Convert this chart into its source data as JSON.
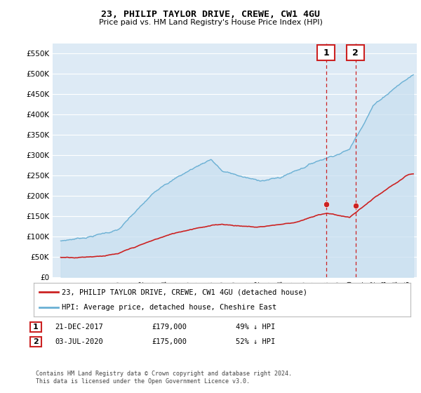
{
  "title": "23, PHILIP TAYLOR DRIVE, CREWE, CW1 4GU",
  "subtitle": "Price paid vs. HM Land Registry's House Price Index (HPI)",
  "hpi_color": "#6ab0d4",
  "hpi_fill_color": "#c8dff0",
  "price_color": "#cc2222",
  "background_color": "#ffffff",
  "plot_bg_color": "#ddeaf5",
  "grid_color": "#ffffff",
  "ylim": [
    0,
    575000
  ],
  "yticks": [
    0,
    50000,
    100000,
    150000,
    200000,
    250000,
    300000,
    350000,
    400000,
    450000,
    500000,
    550000
  ],
  "transaction1": {
    "date": "21-DEC-2017",
    "price": 179000,
    "pct": "49%",
    "direction": "↓"
  },
  "transaction2": {
    "date": "03-JUL-2020",
    "price": 175000,
    "pct": "52%",
    "direction": "↓"
  },
  "legend_label1": "23, PHILIP TAYLOR DRIVE, CREWE, CW1 4GU (detached house)",
  "legend_label2": "HPI: Average price, detached house, Cheshire East",
  "footnote": "Contains HM Land Registry data © Crown copyright and database right 2024.\nThis data is licensed under the Open Government Licence v3.0.",
  "vline_color": "#cc2222",
  "marker_color": "#cc2222",
  "xlim_left": 1994.3,
  "xlim_right": 2025.8,
  "xtick_start": 1995,
  "xtick_end": 2025
}
